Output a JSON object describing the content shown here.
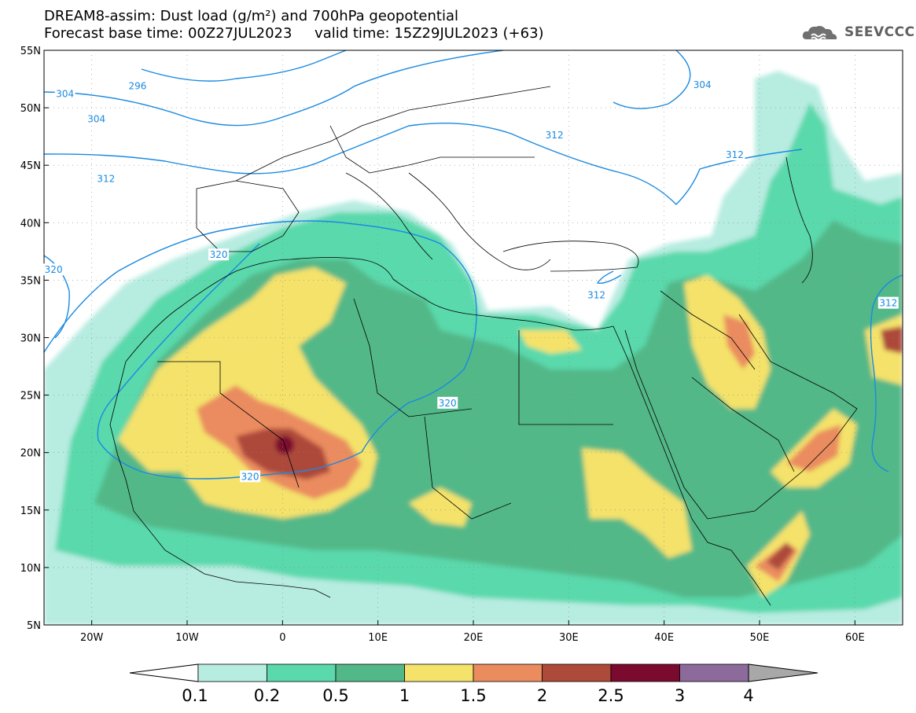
{
  "header": {
    "line1": "DREAM8-assim: Dust load (g/m²) and 700hPa geopotential",
    "line2": "Forecast base time: 00Z27JUL2023     valid time: 15Z29JUL2023 (+63)"
  },
  "logo": {
    "text": "SEEVCCC",
    "icon": "cloud-logo-icon"
  },
  "map": {
    "lon_range": [
      -25,
      65
    ],
    "lat_range": [
      5,
      55
    ],
    "x_ticks": [
      "20W",
      "10W",
      "0",
      "10E",
      "20E",
      "30E",
      "40E",
      "50E",
      "60E"
    ],
    "x_tick_values": [
      -20,
      -10,
      0,
      10,
      20,
      30,
      40,
      50,
      60
    ],
    "y_ticks": [
      "55N",
      "50N",
      "45N",
      "40N",
      "35N",
      "30N",
      "25N",
      "20N",
      "15N",
      "10N",
      "5N"
    ],
    "y_tick_values": [
      55,
      50,
      45,
      40,
      35,
      30,
      25,
      20,
      15,
      10,
      5
    ],
    "contour_labels": [
      {
        "text": "304",
        "lon": -22.8,
        "lat": 51.2
      },
      {
        "text": "296",
        "lon": -15.2,
        "lat": 51.9
      },
      {
        "text": "304",
        "lon": -19.5,
        "lat": 49.0
      },
      {
        "text": "312",
        "lon": -18.5,
        "lat": 43.8
      },
      {
        "text": "312",
        "lon": 28.5,
        "lat": 47.6
      },
      {
        "text": "304",
        "lon": 44.0,
        "lat": 52.0
      },
      {
        "text": "312",
        "lon": 47.4,
        "lat": 45.9
      },
      {
        "text": "320",
        "lon": -6.7,
        "lat": 37.2
      },
      {
        "text": "320",
        "lon": -24.0,
        "lat": 35.9
      },
      {
        "text": "312",
        "lon": 32.9,
        "lat": 33.7
      },
      {
        "text": "312",
        "lon": 63.5,
        "lat": 33.0
      },
      {
        "text": "320",
        "lon": 17.3,
        "lat": 24.3
      },
      {
        "text": "320",
        "lon": -3.4,
        "lat": 17.9
      }
    ]
  },
  "colorbar": {
    "labels": [
      "0.1",
      "0.2",
      "0.5",
      "1",
      "1.5",
      "2",
      "2.5",
      "3",
      "4"
    ],
    "colors": [
      "#b7ece1",
      "#5ad9ac",
      "#52b888",
      "#f4e26b",
      "#ea8c5e",
      "#ad4a3a",
      "#7b0b2e",
      "#8d6a9c",
      "#a8a8a8"
    ]
  },
  "legend_colors": {
    "contour": "#1a8ae0",
    "border": "#000000"
  }
}
